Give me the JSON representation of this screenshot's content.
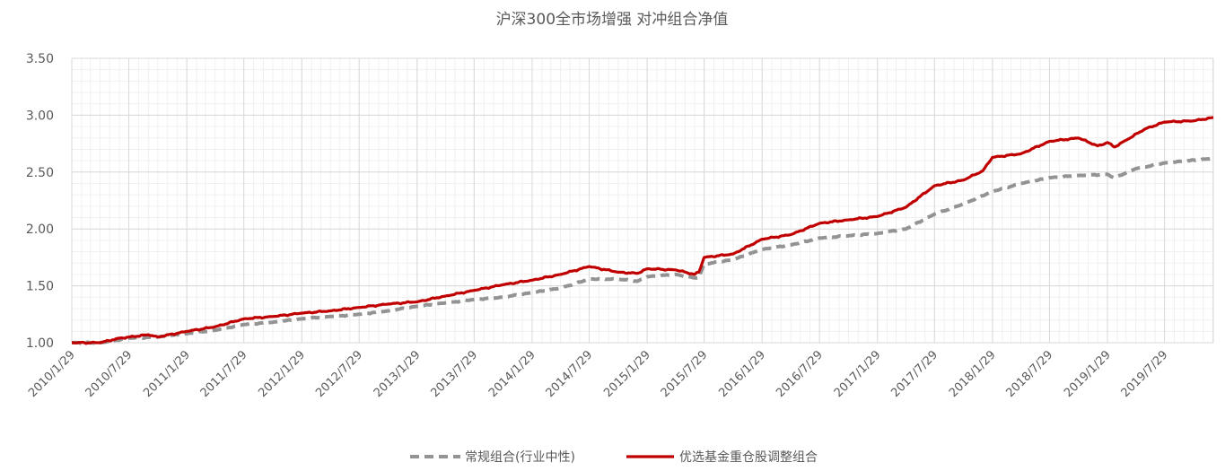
{
  "chart_data": {
    "type": "line",
    "title": "沪深300全市场增强 对冲组合净值",
    "xlabel": "",
    "ylabel": "",
    "ylim": [
      1.0,
      3.5
    ],
    "yticks": [
      "1.00",
      "1.50",
      "2.00",
      "2.50",
      "3.00",
      "3.50"
    ],
    "x_start": "2010-01-29",
    "x_end": "2019-12-31",
    "xticks": [
      "2010/1/29",
      "2010/7/29",
      "2011/1/29",
      "2011/7/29",
      "2012/1/29",
      "2012/7/29",
      "2013/1/29",
      "2013/7/29",
      "2014/1/29",
      "2014/7/29",
      "2015/1/29",
      "2015/7/29",
      "2016/1/29",
      "2016/7/29",
      "2017/1/29",
      "2017/7/29",
      "2018/1/29",
      "2018/7/29",
      "2019/1/29",
      "2019/7/29"
    ],
    "grid": true,
    "legend_position": "bottom",
    "series": [
      {
        "name": "常规组合(行业中性)",
        "style": "dashed",
        "color": "#939393",
        "points": [
          [
            "2010-01-29",
            1.0
          ],
          [
            "2010-04-29",
            1.0
          ],
          [
            "2010-07-29",
            1.04
          ],
          [
            "2010-10-29",
            1.05
          ],
          [
            "2011-01-29",
            1.08
          ],
          [
            "2011-04-29",
            1.11
          ],
          [
            "2011-07-29",
            1.16
          ],
          [
            "2011-10-29",
            1.18
          ],
          [
            "2012-01-29",
            1.21
          ],
          [
            "2012-04-29",
            1.23
          ],
          [
            "2012-07-29",
            1.25
          ],
          [
            "2012-10-29",
            1.28
          ],
          [
            "2013-01-29",
            1.32
          ],
          [
            "2013-04-29",
            1.35
          ],
          [
            "2013-07-29",
            1.38
          ],
          [
            "2013-10-29",
            1.4
          ],
          [
            "2014-01-29",
            1.44
          ],
          [
            "2014-04-29",
            1.48
          ],
          [
            "2014-07-29",
            1.56
          ],
          [
            "2014-10-29",
            1.56
          ],
          [
            "2014-12-29",
            1.54
          ],
          [
            "2015-01-29",
            1.58
          ],
          [
            "2015-04-29",
            1.6
          ],
          [
            "2015-06-29",
            1.57
          ],
          [
            "2015-07-12",
            1.57
          ],
          [
            "2015-07-29",
            1.69
          ],
          [
            "2015-10-29",
            1.73
          ],
          [
            "2016-01-29",
            1.82
          ],
          [
            "2016-04-29",
            1.86
          ],
          [
            "2016-07-29",
            1.92
          ],
          [
            "2016-10-29",
            1.94
          ],
          [
            "2017-01-29",
            1.96
          ],
          [
            "2017-04-29",
            2.0
          ],
          [
            "2017-07-29",
            2.13
          ],
          [
            "2017-10-29",
            2.22
          ],
          [
            "2018-01-29",
            2.33
          ],
          [
            "2018-04-29",
            2.4
          ],
          [
            "2018-07-29",
            2.45
          ],
          [
            "2018-10-29",
            2.47
          ],
          [
            "2019-01-29",
            2.48
          ],
          [
            "2019-02-20",
            2.45
          ],
          [
            "2019-04-29",
            2.53
          ],
          [
            "2019-07-29",
            2.58
          ],
          [
            "2019-12-31",
            2.62
          ]
        ]
      },
      {
        "name": "优选基金重仓股调整组合",
        "style": "solid",
        "color": "#C00000",
        "points": [
          [
            "2010-01-29",
            1.0
          ],
          [
            "2010-04-29",
            1.0
          ],
          [
            "2010-06-29",
            1.04
          ],
          [
            "2010-07-29",
            1.05
          ],
          [
            "2010-09-29",
            1.07
          ],
          [
            "2010-10-29",
            1.05
          ],
          [
            "2011-01-29",
            1.1
          ],
          [
            "2011-04-29",
            1.14
          ],
          [
            "2011-07-29",
            1.21
          ],
          [
            "2011-10-29",
            1.23
          ],
          [
            "2012-01-29",
            1.26
          ],
          [
            "2012-04-29",
            1.28
          ],
          [
            "2012-07-29",
            1.31
          ],
          [
            "2012-10-29",
            1.34
          ],
          [
            "2013-01-29",
            1.36
          ],
          [
            "2013-04-29",
            1.41
          ],
          [
            "2013-07-29",
            1.46
          ],
          [
            "2013-10-29",
            1.51
          ],
          [
            "2014-01-29",
            1.55
          ],
          [
            "2014-04-29",
            1.6
          ],
          [
            "2014-07-29",
            1.67
          ],
          [
            "2014-10-29",
            1.62
          ],
          [
            "2014-12-29",
            1.61
          ],
          [
            "2015-01-29",
            1.65
          ],
          [
            "2015-04-29",
            1.64
          ],
          [
            "2015-06-29",
            1.6
          ],
          [
            "2015-07-12",
            1.62
          ],
          [
            "2015-07-29",
            1.75
          ],
          [
            "2015-10-29",
            1.78
          ],
          [
            "2016-01-29",
            1.91
          ],
          [
            "2016-04-29",
            1.95
          ],
          [
            "2016-07-29",
            2.05
          ],
          [
            "2016-10-29",
            2.08
          ],
          [
            "2017-01-29",
            2.11
          ],
          [
            "2017-04-29",
            2.19
          ],
          [
            "2017-07-29",
            2.38
          ],
          [
            "2017-10-29",
            2.43
          ],
          [
            "2017-12-29",
            2.51
          ],
          [
            "2018-01-29",
            2.63
          ],
          [
            "2018-04-29",
            2.66
          ],
          [
            "2018-07-29",
            2.77
          ],
          [
            "2018-10-29",
            2.8
          ],
          [
            "2018-12-29",
            2.73
          ],
          [
            "2019-01-29",
            2.76
          ],
          [
            "2019-02-20",
            2.72
          ],
          [
            "2019-03-29",
            2.78
          ],
          [
            "2019-05-29",
            2.88
          ],
          [
            "2019-07-29",
            2.94
          ],
          [
            "2019-10-29",
            2.95
          ],
          [
            "2019-12-31",
            2.98
          ]
        ]
      }
    ]
  }
}
